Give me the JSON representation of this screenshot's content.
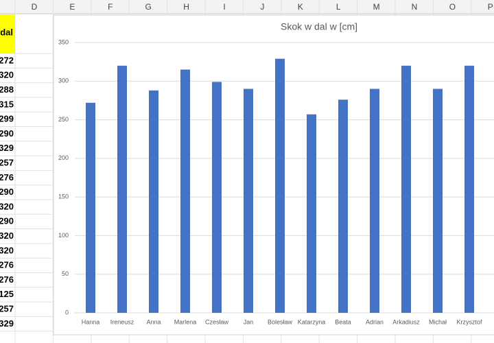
{
  "column_headers": [
    "D",
    "E",
    "F",
    "G",
    "H",
    "I",
    "J",
    "K",
    "L",
    "M",
    "N",
    "O",
    "P"
  ],
  "sheet": {
    "header": "dal",
    "values": [
      "272",
      "320",
      "288",
      "315",
      "299",
      "290",
      "329",
      "257",
      "276",
      "290",
      "320",
      "290",
      "320",
      "320",
      "276",
      "276",
      "125",
      "257",
      "329"
    ]
  },
  "chart_data": {
    "type": "bar",
    "title": "Skok w dal w [cm]",
    "categories": [
      "Hanna",
      "Ireneusz",
      "Anna",
      "Marlena",
      "Czesław",
      "Jan",
      "Bolesław",
      "Katarzyna",
      "Beata",
      "Adrian",
      "Arkadiusz",
      "Michał",
      "Krzysztof"
    ],
    "values": [
      272,
      320,
      288,
      315,
      299,
      290,
      329,
      257,
      276,
      290,
      320,
      290,
      320
    ],
    "color": "#4472c4",
    "ylim": [
      0,
      350
    ],
    "yticks": [
      0,
      50,
      100,
      150,
      200,
      250,
      300,
      350
    ],
    "grid": true
  }
}
